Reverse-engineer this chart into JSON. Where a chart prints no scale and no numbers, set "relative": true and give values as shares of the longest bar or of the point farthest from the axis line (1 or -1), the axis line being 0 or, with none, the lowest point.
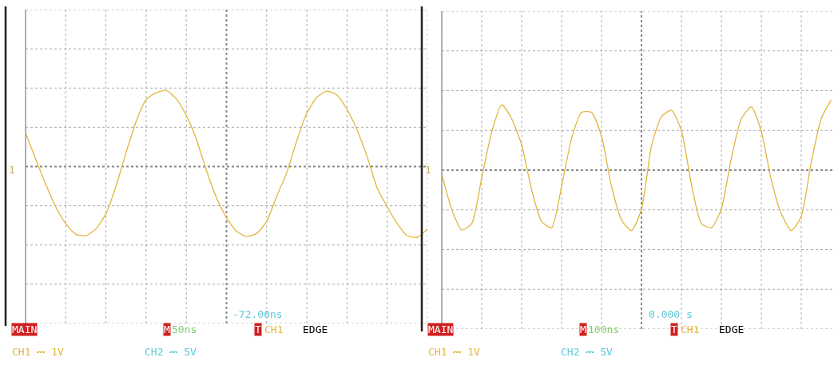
{
  "chart_data": [
    {
      "type": "line",
      "relative": true,
      "grid": true,
      "categories": [
        null,
        null,
        null,
        null,
        null,
        null,
        null,
        null,
        null,
        null,
        null,
        null,
        null,
        null,
        null,
        null,
        null,
        null,
        null,
        null,
        null,
        null,
        null,
        null,
        null,
        null,
        null,
        null,
        null,
        null,
        null,
        null,
        null,
        null,
        null,
        null,
        null,
        null,
        null,
        null,
        null
      ],
      "series": [
        {
          "color": "#e3b53c",
          "values": [
            0.44,
            0.1,
            -0.23,
            -0.53,
            -0.75,
            -0.89,
            -0.91,
            -0.82,
            -0.62,
            -0.26,
            0.18,
            0.59,
            0.88,
            0.97,
            1.0,
            0.89,
            0.67,
            0.36,
            -0.05,
            -0.41,
            -0.67,
            -0.85,
            -0.92,
            -0.88,
            -0.72,
            -0.39,
            -0.08,
            0.34,
            0.7,
            0.91,
            0.99,
            0.94,
            0.75,
            0.48,
            0.13,
            -0.28,
            -0.53,
            -0.75,
            -0.91,
            -0.93,
            -0.82
          ]
        }
      ],
      "ref_lines": [
        {
          "axis": "y",
          "value": 0,
          "color": "#888888",
          "line_style": "dotted"
        }
      ],
      "annotations": [
        "-72.00ns",
        "MAIN",
        "M",
        "50ns",
        "T",
        "CH1",
        "EDGE",
        "CH1 ⎓ 1V",
        "CH2 ⎓ 5V",
        "1"
      ]
    },
    {
      "type": "line",
      "relative": true,
      "grid": true,
      "categories": [
        null,
        null,
        null,
        null,
        null,
        null,
        null,
        null,
        null,
        null,
        null,
        null,
        null,
        null,
        null,
        null,
        null,
        null,
        null,
        null,
        null,
        null,
        null,
        null,
        null,
        null,
        null,
        null,
        null,
        null,
        null,
        null,
        null,
        null,
        null,
        null,
        null,
        null,
        null,
        null
      ],
      "series": [
        {
          "color": "#e3b53c",
          "values": [
            -0.06,
            -0.56,
            -0.85,
            -0.76,
            -0.11,
            0.54,
            0.93,
            0.73,
            0.36,
            -0.28,
            -0.73,
            -0.82,
            -0.23,
            0.45,
            0.82,
            0.82,
            0.48,
            -0.23,
            -0.71,
            -0.86,
            -0.56,
            0.34,
            0.76,
            0.85,
            0.56,
            -0.2,
            -0.76,
            -0.82,
            -0.55,
            0.17,
            0.73,
            0.9,
            0.55,
            -0.14,
            -0.62,
            -0.86,
            -0.66,
            0.11,
            0.73,
            1.0
          ]
        }
      ],
      "ref_lines": [
        {
          "axis": "y",
          "value": 0,
          "color": "#888888",
          "line_style": "dotted"
        }
      ],
      "annotations": [
        "0.000 s",
        "MAIN",
        "M",
        "100ns",
        "T",
        "CH1",
        "EDGE",
        "CH1 ⎓ 1V",
        "CH2 ⎓ 5V",
        "1"
      ]
    }
  ]
}
